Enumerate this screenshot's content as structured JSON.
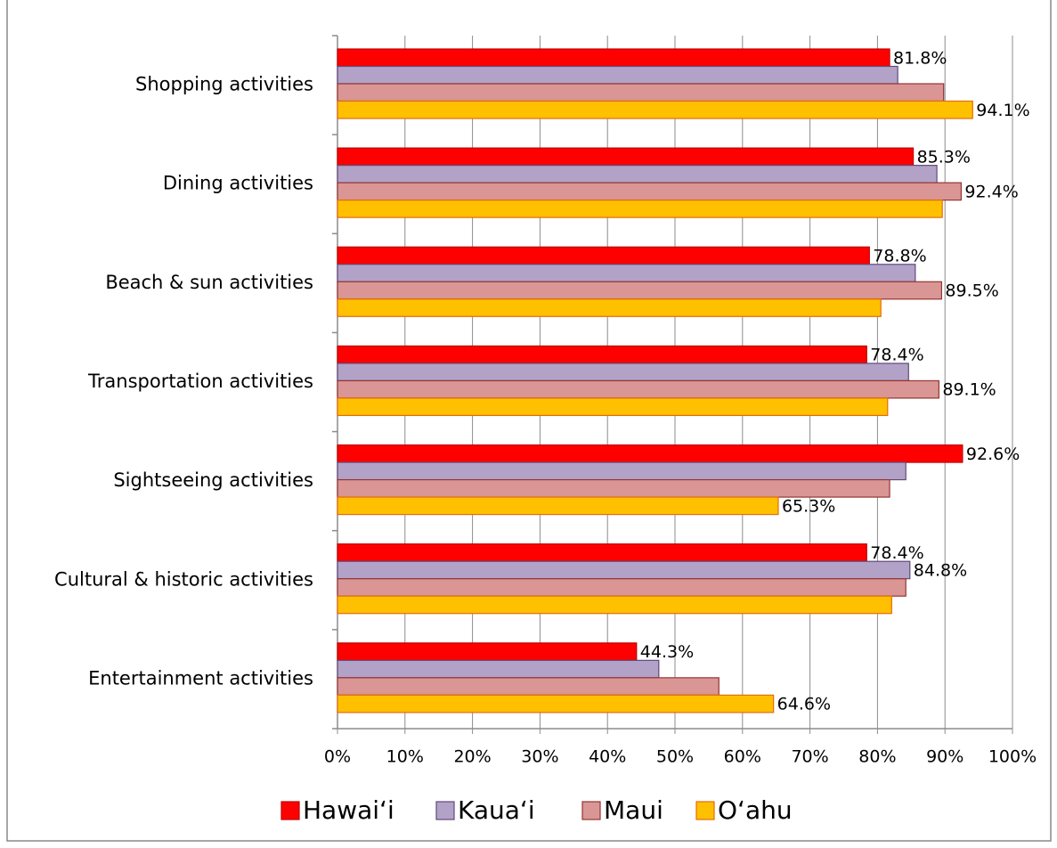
{
  "chart_data": {
    "type": "hbar",
    "categories": [
      "Shopping activities",
      "Dining activities",
      "Beach & sun activities",
      "Transportation activities",
      "Sightseeing activities",
      "Cultural & historic activities",
      "Entertainment activities"
    ],
    "series": [
      {
        "name": "Hawaiʻi",
        "color": "#ff0000",
        "border": "#c00000",
        "values": [
          81.8,
          85.3,
          78.8,
          78.4,
          92.6,
          78.4,
          44.3
        ],
        "value_labels": [
          "81.8%",
          "85.3%",
          "78.8%",
          "78.4%",
          "92.6%",
          "78.4%",
          "44.3%"
        ]
      },
      {
        "name": "Kauaʻi",
        "color": "#b3a2c7",
        "border": "#604a7b",
        "values": [
          83.0,
          88.8,
          85.6,
          84.6,
          84.2,
          84.8,
          47.6
        ],
        "value_labels": [
          null,
          null,
          null,
          null,
          null,
          "84.8%",
          null
        ]
      },
      {
        "name": "Maui",
        "color": "#d99694",
        "border": "#943634",
        "values": [
          89.8,
          92.4,
          89.5,
          89.1,
          81.8,
          84.2,
          56.5
        ],
        "value_labels": [
          null,
          "92.4%",
          "89.5%",
          "89.1%",
          null,
          null,
          null
        ]
      },
      {
        "name": "Oʻahu",
        "color": "#ffc000",
        "border": "#e46c0a",
        "values": [
          94.1,
          89.6,
          80.5,
          81.5,
          65.3,
          82.1,
          64.6
        ],
        "value_labels": [
          "94.1%",
          null,
          null,
          null,
          "65.3%",
          null,
          "64.6%"
        ]
      }
    ],
    "xlim": [
      0,
      100
    ],
    "xticks": [
      {
        "value": 0,
        "label": "0%"
      },
      {
        "value": 10,
        "label": "10%"
      },
      {
        "value": 20,
        "label": "20%"
      },
      {
        "value": 30,
        "label": "30%"
      },
      {
        "value": 40,
        "label": "40%"
      },
      {
        "value": 50,
        "label": "50%"
      },
      {
        "value": 60,
        "label": "60%"
      },
      {
        "value": 70,
        "label": "70%"
      },
      {
        "value": 80,
        "label": "80%"
      },
      {
        "value": 90,
        "label": "90%"
      },
      {
        "value": 100,
        "label": "100%"
      }
    ],
    "grid": true,
    "legend": "bottom"
  }
}
